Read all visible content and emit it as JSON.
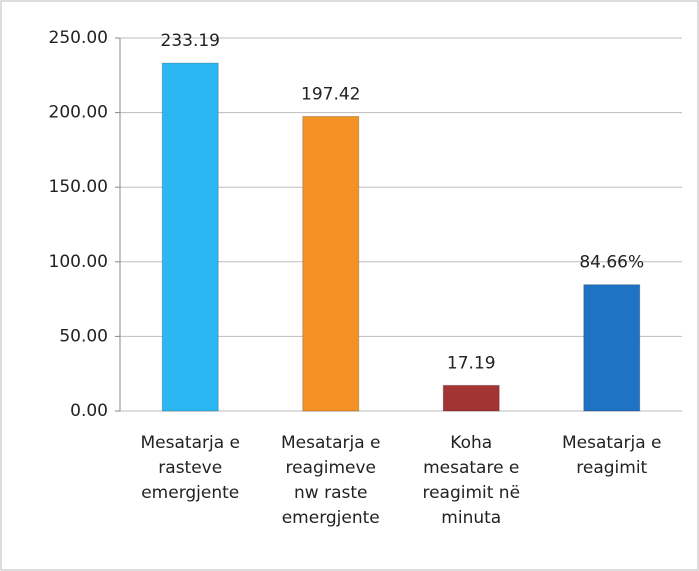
{
  "chart_data": {
    "type": "bar",
    "categories": [
      "Mesatarja e rasteve emergjente",
      "Mesatarja e reagimeve nw raste emergjente",
      "Koha mesatare e reagimit në minuta",
      "Mesatarja e reagimit"
    ],
    "values": [
      233.19,
      197.42,
      17.19,
      84.66
    ],
    "value_labels": [
      "233.19",
      "197.42",
      "17.19",
      "84.66%"
    ],
    "colors": [
      "#2bb8f2",
      "#f39222",
      "#a33434",
      "#1f72c4"
    ],
    "ylim": [
      0,
      250
    ],
    "yticks": [
      {
        "value": 0,
        "label": "0.00"
      },
      {
        "value": 50,
        "label": "50.00"
      },
      {
        "value": 100,
        "label": "100.00"
      },
      {
        "value": 150,
        "label": "150.00"
      },
      {
        "value": 200,
        "label": "200.00"
      },
      {
        "value": 250,
        "label": "250.00"
      }
    ],
    "grid": true
  }
}
